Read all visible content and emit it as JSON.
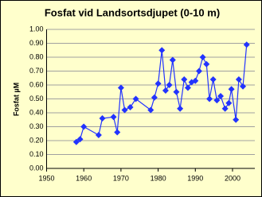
{
  "chart_data": {
    "type": "line",
    "title": "Fosfat vid Landsortsdjupet (0-10 m)",
    "y_label": "Fosfat µM",
    "x": [
      1958,
      1959,
      1960,
      1964,
      1965,
      1968,
      1969,
      1970,
      1971,
      1972.5,
      1974,
      1978,
      1979,
      1980,
      1981,
      1982,
      1983,
      1983.9,
      1984.9,
      1985.9,
      1987,
      1988,
      1989,
      1990,
      1991,
      1992,
      1993,
      1993.8,
      1994.8,
      1995.8,
      1996.8,
      1998,
      1999,
      1999.7,
      2000.9,
      2001.7,
      2002.8,
      2003.8
    ],
    "series": [
      {
        "name": "Fosfat",
        "color": "#2233ff",
        "values": [
          0.19,
          0.21,
          0.3,
          0.24,
          0.36,
          0.37,
          0.26,
          0.58,
          0.42,
          0.44,
          0.5,
          0.42,
          0.51,
          0.61,
          0.85,
          0.56,
          0.6,
          0.78,
          0.55,
          0.43,
          0.64,
          0.58,
          0.62,
          0.63,
          0.7,
          0.8,
          0.75,
          0.5,
          0.64,
          0.49,
          0.52,
          0.43,
          0.47,
          0.57,
          0.35,
          0.64,
          0.59,
          0.89
        ]
      }
    ],
    "xlim": [
      1950,
      2006
    ],
    "xticks": [
      1950,
      1960,
      1970,
      1980,
      1990,
      2000
    ],
    "ylim": [
      0,
      1
    ],
    "yticks": [
      {
        "value": 0,
        "label": "0.00"
      },
      {
        "value": 0.1,
        "label": "0.10"
      },
      {
        "value": 0.2,
        "label": "0.20"
      },
      {
        "value": 0.3,
        "label": "0.30"
      },
      {
        "value": 0.4,
        "label": "0.40"
      },
      {
        "value": 0.5,
        "label": "0.50"
      },
      {
        "value": 0.6,
        "label": "0.60"
      },
      {
        "value": 0.7,
        "label": "0.70"
      },
      {
        "value": 0.8,
        "label": "0.80"
      },
      {
        "value": 0.9,
        "label": "0.90"
      },
      {
        "value": 1,
        "label": "1.00"
      }
    ],
    "grid": true
  }
}
